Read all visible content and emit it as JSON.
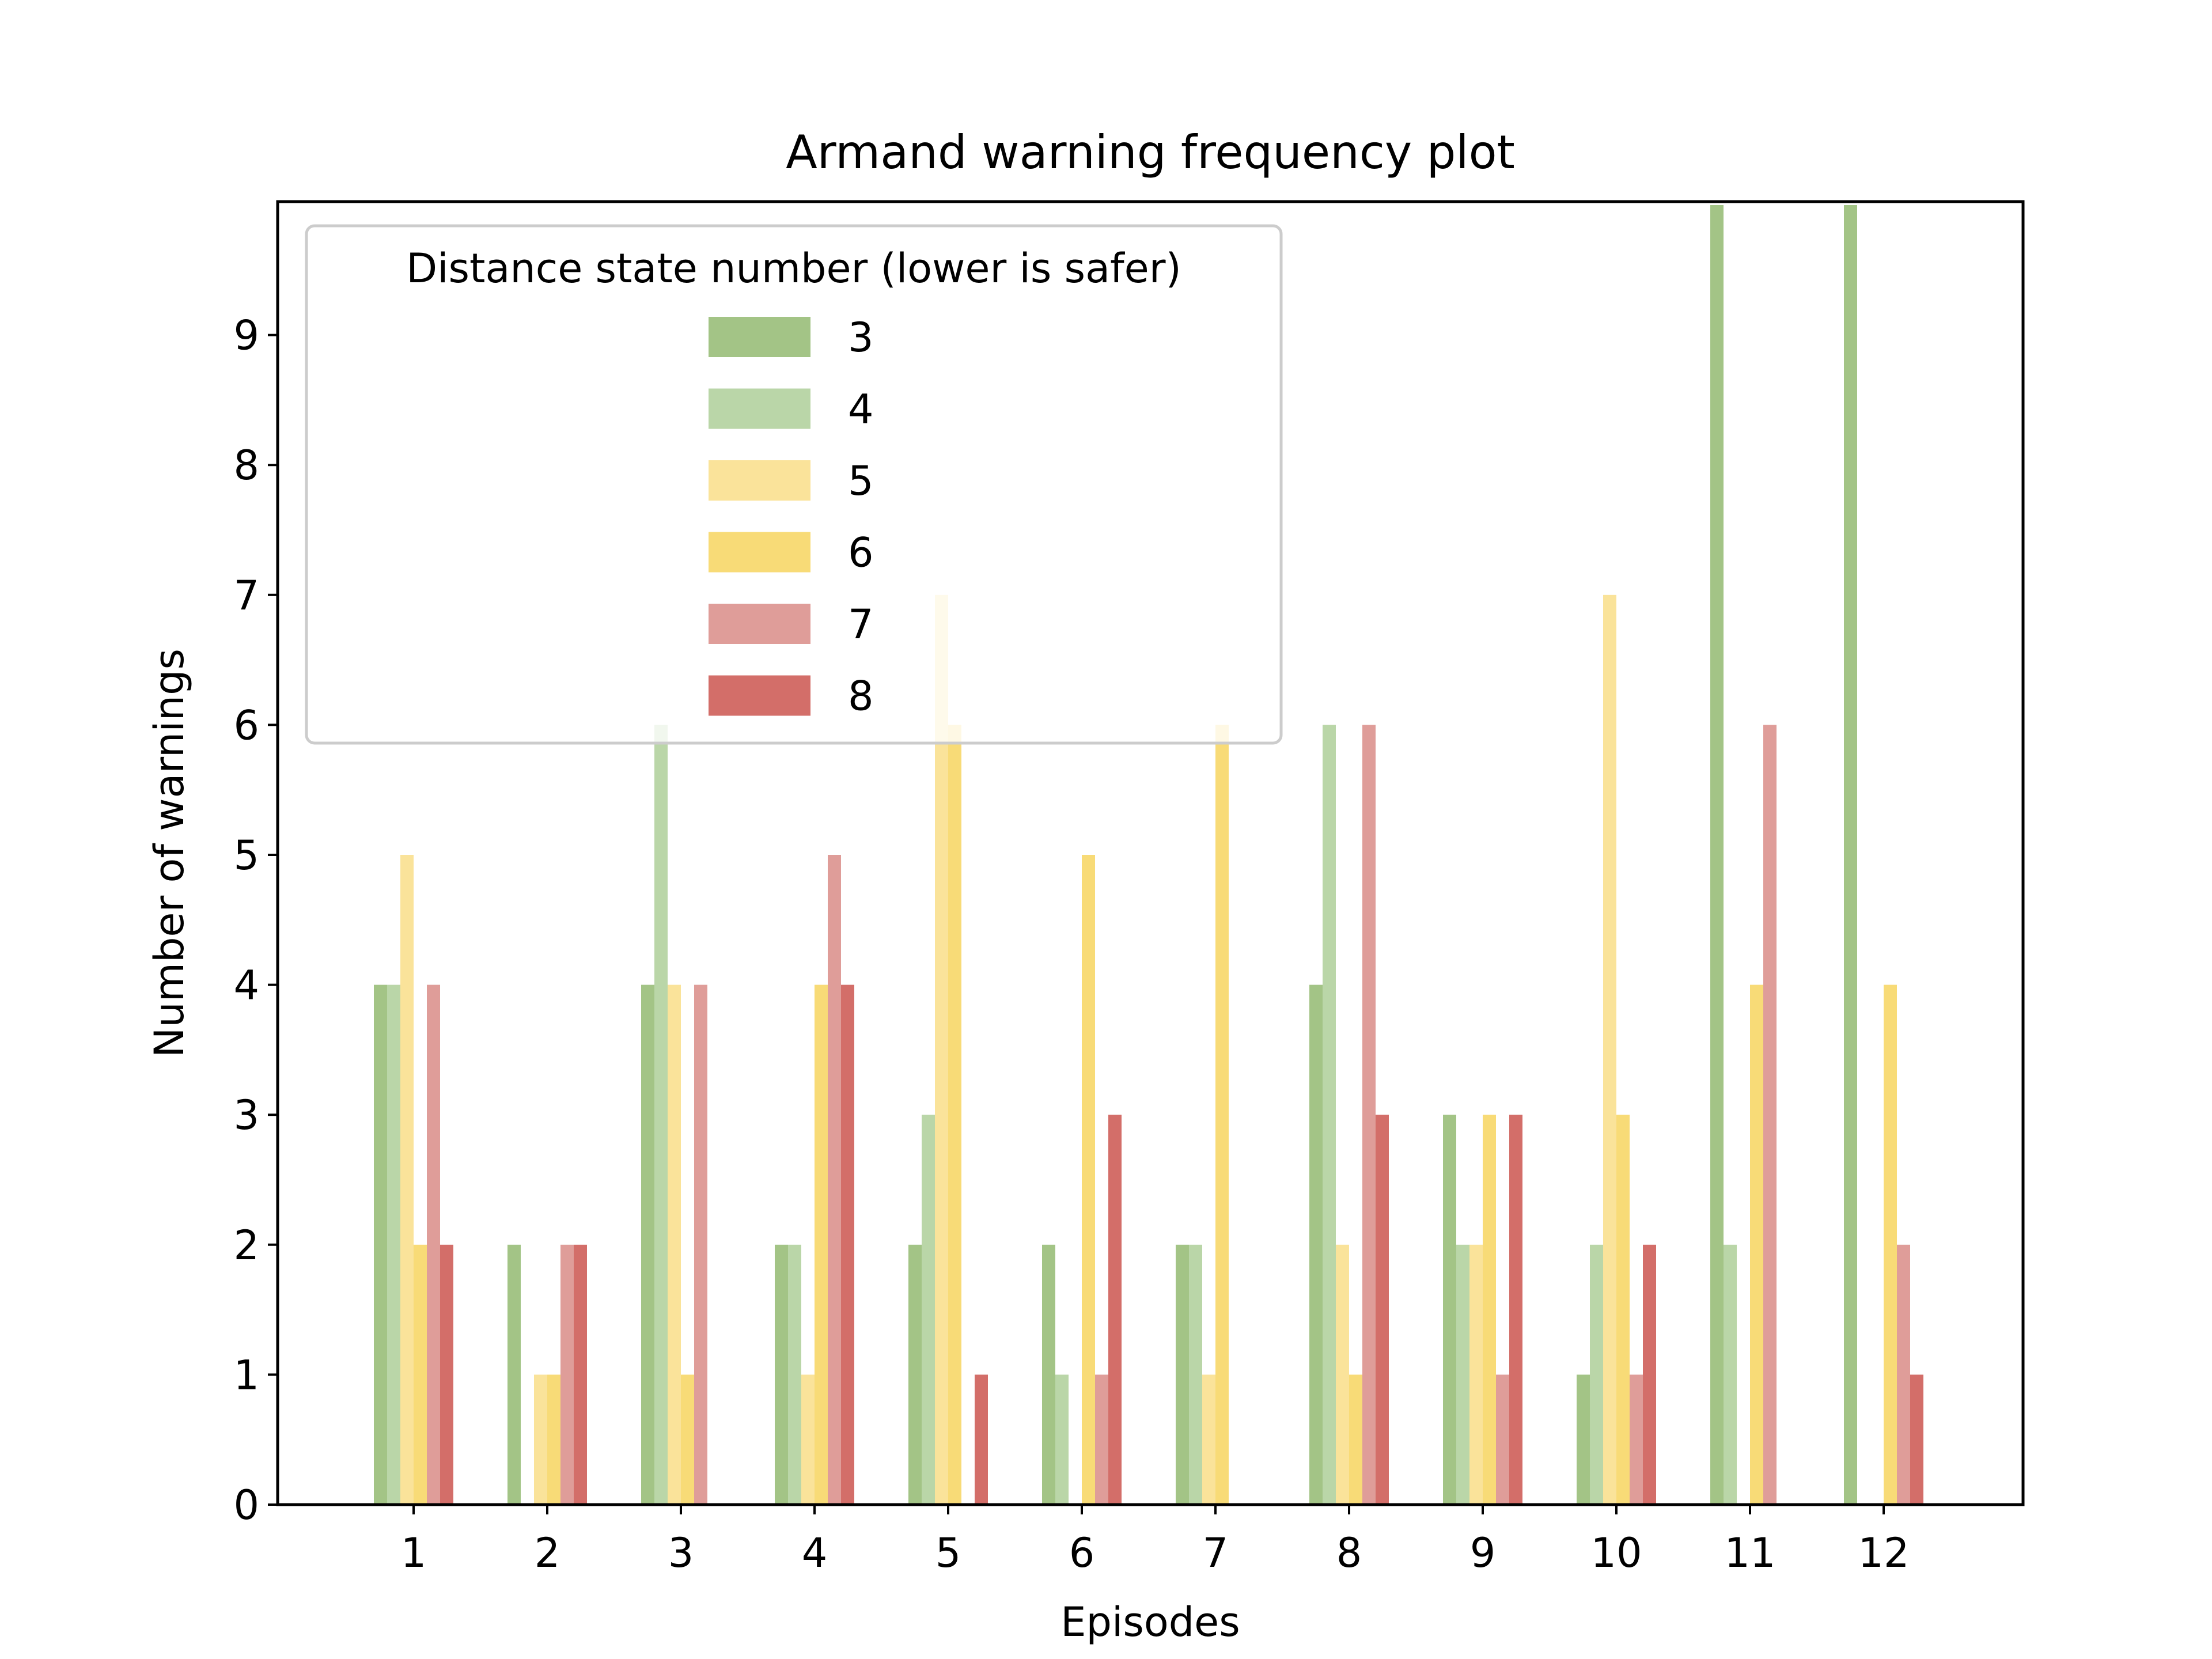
{
  "chart_data": {
    "type": "bar",
    "title": "Armand warning frequency plot",
    "xlabel": "Episodes",
    "ylabel": "Number of warnings",
    "categories": [
      "1",
      "2",
      "3",
      "4",
      "5",
      "6",
      "7",
      "8",
      "9",
      "10",
      "11",
      "12"
    ],
    "ylim": [
      0,
      10
    ],
    "yticks": [
      0,
      1,
      2,
      3,
      4,
      5,
      6,
      7,
      8,
      9
    ],
    "grid": false,
    "legend": {
      "title": "Distance state number (lower is safer)",
      "placement": "upper-left"
    },
    "series": [
      {
        "name": "3",
        "color": "#a3c486",
        "values": [
          4,
          2,
          4,
          2,
          2,
          2,
          2,
          4,
          3,
          1,
          10,
          10
        ]
      },
      {
        "name": "4",
        "color": "#bad6a8",
        "values": [
          4,
          0,
          6,
          2,
          3,
          1,
          2,
          6,
          2,
          2,
          2,
          0
        ]
      },
      {
        "name": "5",
        "color": "#fae39a",
        "values": [
          5,
          1,
          4,
          1,
          7,
          0,
          1,
          2,
          2,
          7,
          0,
          0
        ]
      },
      {
        "name": "6",
        "color": "#f8db77",
        "values": [
          2,
          1,
          1,
          4,
          6,
          5,
          6,
          1,
          3,
          3,
          4,
          4
        ]
      },
      {
        "name": "7",
        "color": "#df9d99",
        "values": [
          4,
          2,
          4,
          5,
          0,
          1,
          0,
          6,
          1,
          1,
          6,
          2
        ]
      },
      {
        "name": "8",
        "color": "#d36e69",
        "values": [
          2,
          2,
          0,
          4,
          1,
          3,
          0,
          3,
          3,
          2,
          0,
          1
        ]
      }
    ]
  }
}
